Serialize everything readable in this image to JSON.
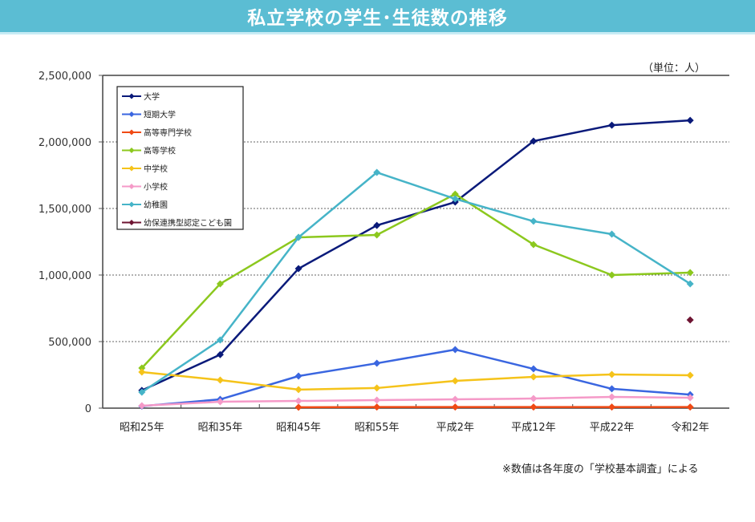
{
  "header": {
    "title": "私立学校の学生･生徒数の推移"
  },
  "unit_label": "（単位：人）",
  "footnote": "※数値は各年度の「学校基本調査」による",
  "chart_data": {
    "type": "line",
    "title": "私立学校の学生･生徒数の推移",
    "xlabel": "",
    "ylabel": "",
    "ylim": [
      0,
      2500000
    ],
    "yticks": [
      0,
      500000,
      1000000,
      1500000,
      2000000,
      2500000
    ],
    "ytick_labels": [
      "0",
      "500,000",
      "1,000,000",
      "1,500,000",
      "2,000,000",
      "2,500,000"
    ],
    "grid": "horizontal-dotted",
    "legend_position": "top-left",
    "categories": [
      "昭和25年",
      "昭和35年",
      "昭和45年",
      "昭和55年",
      "平成2年",
      "平成12年",
      "平成22年",
      "令和2年"
    ],
    "series": [
      {
        "name": "大学",
        "color": "#0a1a7a",
        "values": [
          133000,
          402000,
          1048000,
          1373000,
          1548000,
          2006000,
          2126000,
          2162000
        ]
      },
      {
        "name": "短期大学",
        "color": "#3a66e0",
        "values": [
          15000,
          66000,
          241000,
          337000,
          440000,
          295000,
          145000,
          102000
        ]
      },
      {
        "name": "高等専門学校",
        "color": "#f04a14",
        "values": [
          null,
          null,
          7000,
          8000,
          8000,
          8000,
          8000,
          8000
        ]
      },
      {
        "name": "高等学校",
        "color": "#8cc81e",
        "values": [
          301000,
          934000,
          1283000,
          1301000,
          1608000,
          1229000,
          1000000,
          1018000
        ]
      },
      {
        "name": "中学校",
        "color": "#f5c31a",
        "values": [
          271000,
          211000,
          139000,
          151000,
          205000,
          235000,
          253000,
          247000
        ]
      },
      {
        "name": "小学校",
        "color": "#f59ac8",
        "values": [
          18000,
          48000,
          54000,
          60000,
          66000,
          72000,
          84000,
          78000
        ]
      },
      {
        "name": "幼稚園",
        "color": "#46b4c8",
        "values": [
          120000,
          512000,
          1283000,
          1771000,
          1572000,
          1404000,
          1307000,
          934000
        ]
      },
      {
        "name": "幼保連携型認定こども園",
        "color": "#6e1432",
        "values": [
          null,
          null,
          null,
          null,
          null,
          null,
          null,
          663000
        ]
      }
    ]
  }
}
